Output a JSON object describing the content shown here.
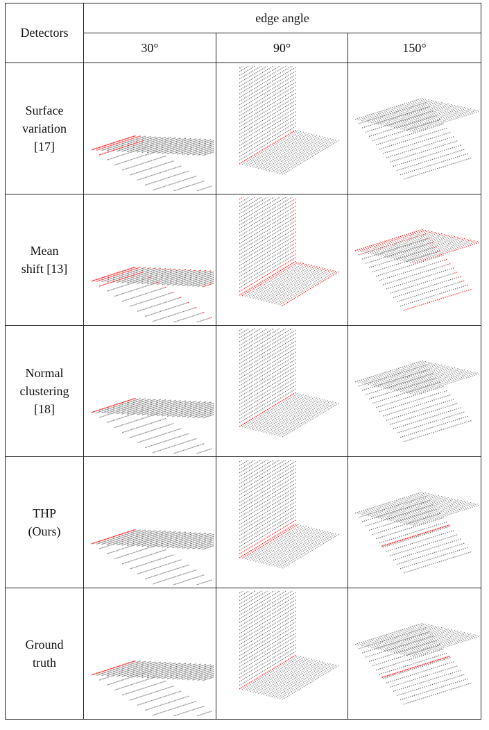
{
  "header": {
    "detectors_label": "Detectors",
    "group_label": "edge angle",
    "angles": [
      "30°",
      "90°",
      "150°"
    ]
  },
  "rows": [
    {
      "label_lines": [
        "Surface",
        "variation",
        "[17]"
      ],
      "method": "surface-variation"
    },
    {
      "label_lines": [
        "Mean",
        "shift [13]"
      ],
      "method": "mean-shift"
    },
    {
      "label_lines": [
        "Normal",
        "clustering",
        "[18]"
      ],
      "method": "normal-clustering"
    },
    {
      "label_lines": [
        "THP",
        "(Ours)"
      ],
      "method": "thp-ours"
    },
    {
      "label_lines": [
        "Ground",
        "truth"
      ],
      "method": "ground-truth"
    }
  ],
  "colors": {
    "points": "#6e6e6e",
    "edge_points": "#ff1a1a",
    "border": "#222222"
  }
}
